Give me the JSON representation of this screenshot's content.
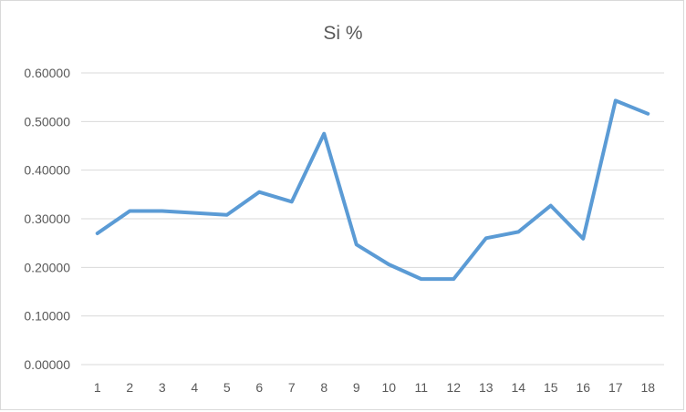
{
  "chart_data": {
    "type": "line",
    "title": "Si %",
    "xlabel": "",
    "ylabel": "",
    "x": [
      "1",
      "2",
      "3",
      "4",
      "5",
      "6",
      "7",
      "8",
      "9",
      "10",
      "11",
      "12",
      "13",
      "14",
      "15",
      "16",
      "17",
      "18"
    ],
    "series": [
      {
        "values": [
          0.27,
          0.316,
          0.316,
          0.312,
          0.308,
          0.355,
          0.335,
          0.475,
          0.247,
          0.206,
          0.176,
          0.176,
          0.26,
          0.273,
          0.327,
          0.259,
          0.543,
          0.516
        ],
        "color": "#5b9bd5"
      }
    ],
    "ylim": [
      0,
      0.6
    ],
    "yticks": [
      0,
      0.1,
      0.2,
      0.3,
      0.4,
      0.5,
      0.6
    ],
    "ytick_labels": [
      "0.00000",
      "0.10000",
      "0.20000",
      "0.30000",
      "0.40000",
      "0.50000",
      "0.60000"
    ],
    "grid": true,
    "legend": "none",
    "colors": {
      "grid": "#d9d9d9",
      "text": "#595959"
    }
  }
}
